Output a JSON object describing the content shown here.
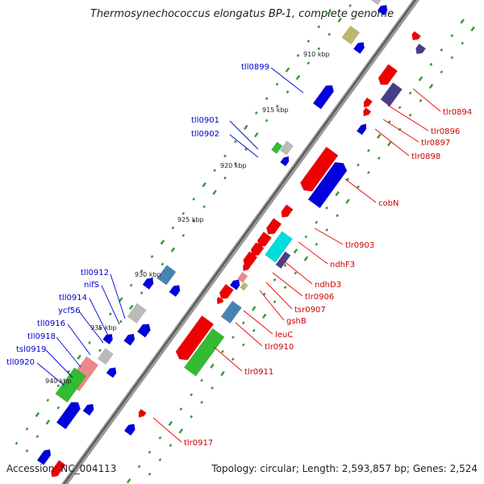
{
  "title": "Thermosynechococcus elongatus BP-1, complete genome",
  "footer": {
    "accession": "Accession: NC_004113",
    "summary": "Topology: circular; Length: 2,593,857 bp; Genes: 2,524"
  },
  "colors": {
    "forward_strand": "#ee0000",
    "reverse_strand": "#0000dd",
    "rrna_green": "#33bb33",
    "steelblue": "#4682b4",
    "gray": "#bbbbbb",
    "khaki": "#bdb76b",
    "slateblue": "#483d8b",
    "cyan": "#00dddd",
    "pink": "#ee8888",
    "backbone": "#777777",
    "tick": "#339933",
    "label_forward": "#cc0000",
    "label_reverse": "#0000cc"
  },
  "scale_labels": [
    "910 kbp",
    "915 kbp",
    "920 kbp",
    "925 kbp",
    "930 kbp",
    "935 kbp",
    "940 kbp"
  ],
  "gene_labels": {
    "reverse": [
      "tll0899",
      "tll0901",
      "tll0902",
      "tll0912",
      "nifS",
      "tll0914",
      "ycf56",
      "tll0916",
      "tll0918",
      "tsl0919",
      "tll0920"
    ],
    "forward": [
      "tlr0894",
      "tlr0896",
      "tlr0897",
      "tlr0898",
      "cobN",
      "tlr0903",
      "ndhF3",
      "ndhD3",
      "tlr0906",
      "tsr0907",
      "gshB",
      "leuC",
      "tlr0910",
      "tlr0911",
      "tlr0917"
    ]
  }
}
